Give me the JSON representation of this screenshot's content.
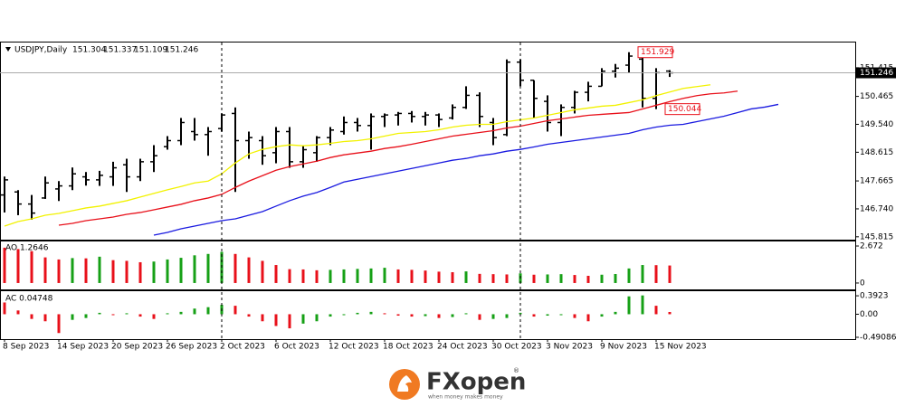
{
  "chart_data": [
    {
      "type": "ohlc",
      "title": "USDJPY,Daily",
      "categories": [
        "8 Sep 2023",
        null,
        null,
        null,
        "14 Sep 2023",
        null,
        null,
        null,
        "20 Sep 2023",
        null,
        null,
        null,
        "26 Sep 2023",
        null,
        null,
        null,
        "2 Oct 2023",
        null,
        null,
        null,
        "6 Oct 2023",
        null,
        null,
        null,
        "12 Oct 2023",
        null,
        null,
        null,
        "18 Oct 2023",
        null,
        null,
        null,
        "24 Oct 2023",
        null,
        null,
        null,
        "30 Oct 2023",
        null,
        null,
        null,
        "3 Nov 2023",
        null,
        null,
        null,
        "9 Nov 2023",
        null,
        null,
        null,
        "15 Nov 2023",
        null,
        null,
        null,
        null,
        null,
        null,
        null,
        null,
        null
      ],
      "series": [
        {
          "type": "ohlc",
          "color": "#000000",
          "open": [
            147.2,
            147.3,
            146.9,
            147.1,
            147.4,
            147.5,
            147.8,
            147.7,
            147.8,
            148.2,
            147.8,
            148.3,
            148.8,
            149.0,
            149.3,
            149.2,
            149.4,
            149.9,
            149.0,
            149.0,
            148.6,
            149.3,
            148.3,
            148.6,
            149.1,
            149.3,
            149.6,
            149.5,
            149.8,
            149.85,
            149.9,
            149.8,
            149.85,
            149.75,
            150.1,
            150.5,
            149.6,
            149.2,
            151.6,
            151.0,
            150.3,
            149.6,
            150.1,
            150.6,
            150.8,
            151.3,
            151.5,
            151.7,
            150.4,
            151.304,
            null,
            null,
            null,
            null,
            null,
            null,
            null,
            null
          ],
          "high": [
            147.81,
            147.36,
            147.2,
            147.81,
            147.66,
            148.11,
            147.96,
            148.0,
            148.3,
            148.4,
            148.4,
            148.85,
            149.15,
            149.75,
            149.75,
            149.45,
            149.9,
            150.1,
            149.3,
            149.15,
            149.45,
            149.45,
            148.85,
            149.15,
            149.45,
            149.8,
            149.75,
            149.9,
            149.9,
            149.95,
            149.98,
            149.95,
            149.9,
            150.2,
            150.8,
            150.6,
            149.75,
            151.69,
            151.69,
            151.0,
            150.5,
            150.2,
            150.65,
            150.95,
            151.4,
            151.54,
            151.929,
            151.9,
            151.4,
            151.337,
            null,
            null,
            null,
            null,
            null,
            null,
            null,
            null
          ],
          "low": [
            146.62,
            146.53,
            146.38,
            147.07,
            147.0,
            147.36,
            147.51,
            147.5,
            147.5,
            147.3,
            147.66,
            147.96,
            148.7,
            148.85,
            149.0,
            148.5,
            149.3,
            147.3,
            148.4,
            148.2,
            148.25,
            148.1,
            148.1,
            148.3,
            148.85,
            149.2,
            149.3,
            148.7,
            149.45,
            149.5,
            149.6,
            149.5,
            149.45,
            149.7,
            150.05,
            149.45,
            148.85,
            149.15,
            150.8,
            149.75,
            149.3,
            149.15,
            149.9,
            150.3,
            150.8,
            151.09,
            151.24,
            150.1,
            150.044,
            151.109,
            null,
            null,
            null,
            null,
            null,
            null,
            null,
            null
          ],
          "close": [
            147.7,
            146.9,
            146.6,
            147.6,
            147.5,
            147.9,
            147.7,
            147.85,
            148.1,
            147.8,
            148.3,
            148.5,
            149.0,
            149.6,
            149.2,
            149.3,
            149.85,
            149.0,
            149.1,
            148.5,
            149.3,
            148.3,
            148.7,
            149.1,
            149.35,
            149.6,
            149.5,
            149.8,
            149.85,
            149.9,
            149.8,
            149.85,
            149.7,
            150.1,
            150.5,
            149.8,
            149.1,
            151.6,
            151.0,
            150.4,
            149.6,
            150.1,
            150.6,
            150.8,
            151.3,
            151.4,
            151.8,
            150.4,
            151.25,
            151.246,
            null,
            null,
            null,
            null,
            null,
            null,
            null,
            null
          ]
        },
        {
          "type": "line",
          "color": "#f2f200",
          "values": [
            146.17,
            146.32,
            146.41,
            146.53,
            146.59,
            146.68,
            146.77,
            146.83,
            146.92,
            147.01,
            147.13,
            147.25,
            147.37,
            147.48,
            147.6,
            147.66,
            147.9,
            148.26,
            148.56,
            148.71,
            148.8,
            148.86,
            148.83,
            148.86,
            148.91,
            148.97,
            149.0,
            149.06,
            149.15,
            149.24,
            149.27,
            149.3,
            149.36,
            149.45,
            149.51,
            149.54,
            149.54,
            149.63,
            149.69,
            149.75,
            149.84,
            149.93,
            150.02,
            150.08,
            150.14,
            150.17,
            150.26,
            150.35,
            150.49,
            150.61,
            150.73,
            150.79,
            150.85,
            null,
            null,
            null,
            null,
            null
          ]
        },
        {
          "type": "line",
          "color": "#e8101a",
          "values": [
            null,
            null,
            null,
            null,
            146.2,
            146.26,
            146.35,
            146.41,
            146.47,
            146.56,
            146.62,
            146.71,
            146.8,
            146.89,
            147.01,
            147.1,
            147.22,
            147.45,
            147.66,
            147.84,
            148.02,
            148.14,
            148.23,
            148.32,
            148.44,
            148.53,
            148.59,
            148.65,
            148.74,
            148.8,
            148.88,
            148.97,
            149.06,
            149.15,
            149.21,
            149.27,
            149.33,
            149.42,
            149.48,
            149.57,
            149.66,
            149.72,
            149.78,
            149.84,
            149.87,
            149.9,
            149.93,
            150.05,
            150.17,
            150.29,
            150.4,
            150.49,
            150.55,
            150.58,
            150.64,
            null,
            null,
            null
          ]
        },
        {
          "type": "line",
          "color": "#1a1ae0",
          "values": [
            null,
            null,
            null,
            null,
            null,
            null,
            null,
            null,
            null,
            null,
            null,
            145.87,
            145.96,
            146.08,
            146.17,
            146.26,
            146.35,
            146.41,
            146.53,
            146.65,
            146.83,
            147.01,
            147.16,
            147.28,
            147.45,
            147.63,
            147.72,
            147.81,
            147.9,
            147.99,
            148.08,
            148.17,
            148.26,
            148.35,
            148.41,
            148.5,
            148.56,
            148.65,
            148.71,
            148.79,
            148.88,
            148.94,
            149.0,
            149.06,
            149.12,
            149.18,
            149.24,
            149.36,
            149.45,
            149.51,
            149.54,
            149.63,
            149.72,
            149.81,
            149.93,
            150.05,
            150.11,
            150.2
          ]
        }
      ],
      "annotations": [
        151.929,
        150.044
      ],
      "annotation_color": "#e8101a",
      "ylim": [
        145.72,
        152.25
      ],
      "yticks": [
        151.415,
        150.465,
        {
          "value": 149.54,
          "label": "149.540"
        },
        148.615,
        147.665,
        {
          "value": 146.74,
          "label": "146.740"
        },
        145.815
      ]
    },
    {
      "type": "bar",
      "title": "AO 1.2646",
      "up_color": "#16a016",
      "down_color": "#e8101a",
      "values": [
        2.55,
        2.45,
        2.3,
        1.85,
        1.7,
        1.8,
        1.78,
        1.9,
        1.65,
        1.6,
        1.5,
        1.55,
        1.7,
        1.82,
        2.0,
        2.1,
        2.25,
        2.1,
        1.85,
        1.6,
        1.3,
        1.0,
        0.98,
        0.92,
        0.95,
        0.98,
        1.02,
        1.05,
        1.1,
        0.98,
        0.95,
        0.9,
        0.82,
        0.78,
        0.84,
        0.66,
        0.64,
        0.62,
        0.7,
        0.6,
        0.62,
        0.64,
        0.58,
        0.52,
        0.6,
        0.65,
        1.05,
        1.3,
        1.29,
        1.2646,
        null,
        null,
        null,
        null,
        null,
        null,
        null,
        null
      ],
      "ylim": [
        -0.46,
        3.0
      ],
      "yticks": [
        2.672,
        0
      ]
    },
    {
      "type": "bar",
      "title": "AC 0.04748",
      "up_color": "#16a016",
      "down_color": "#e8101a",
      "values": [
        0.25,
        0.08,
        -0.1,
        -0.15,
        -0.4,
        -0.12,
        -0.08,
        0.03,
        -0.02,
        0.02,
        -0.05,
        -0.1,
        0.02,
        0.05,
        0.12,
        0.15,
        0.2,
        0.18,
        -0.05,
        -0.15,
        -0.25,
        -0.3,
        -0.2,
        -0.15,
        -0.05,
        -0.02,
        0.03,
        0.05,
        0.02,
        -0.03,
        -0.05,
        -0.04,
        -0.08,
        -0.06,
        0.02,
        -0.12,
        -0.1,
        -0.08,
        0.03,
        -0.05,
        -0.03,
        -0.02,
        -0.08,
        -0.15,
        -0.05,
        0.05,
        0.38,
        0.4,
        0.18,
        0.04748,
        null,
        null,
        null,
        null,
        null,
        null,
        null,
        null
      ],
      "ylim": [
        -0.53,
        0.49
      ],
      "yticks": [
        0.3923,
        {
          "value": 0,
          "label": "0.00"
        },
        -0.49086
      ]
    }
  ],
  "brand": {
    "name": "FXopen",
    "mark": "®",
    "tagline": "when money makes money"
  }
}
